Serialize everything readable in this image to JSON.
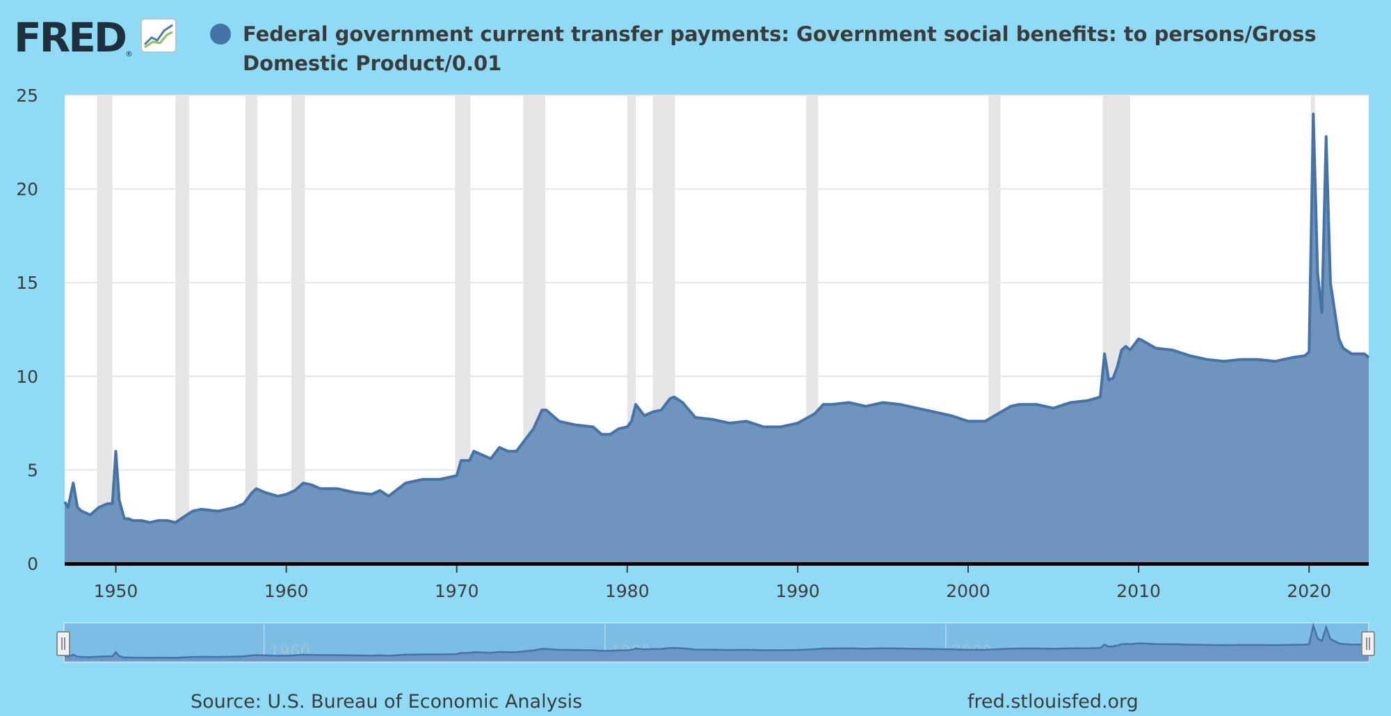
{
  "header": {
    "logo_text": "FRED",
    "logo_reg": "®",
    "title": "Federal government current transfer payments: Government social benefits: to persons/Gross Domestic Product/0.01",
    "series_color": "#4572a7"
  },
  "footer": {
    "source": "Source: U.S. Bureau of Economic Analysis",
    "url": "fred.stlouisfed.org"
  },
  "colors": {
    "background": "#8fdbf5",
    "plot_background": "#ffffff",
    "recession_band": "#e5e5e5",
    "series_line": "#4572a7",
    "series_fill": "#6f94bd",
    "navigator_bg": "#74b9e0"
  },
  "chart_data": {
    "type": "area",
    "title": "Federal government current transfer payments: Government social benefits: to persons/Gross Domestic Product/0.01",
    "xlabel": "",
    "ylabel": "",
    "xlim": [
      1947.0,
      2023.5
    ],
    "ylim": [
      0,
      25
    ],
    "yticks": [
      0,
      5,
      10,
      15,
      20,
      25
    ],
    "xticks": [
      1950,
      1960,
      1970,
      1980,
      1990,
      2000,
      2010,
      2020
    ],
    "navigator_ticks": [
      1960,
      1980,
      2000
    ],
    "grid": true,
    "legend": "top-left",
    "recessions": [
      [
        1948.9,
        1949.8
      ],
      [
        1953.5,
        1954.3
      ],
      [
        1957.6,
        1958.3
      ],
      [
        1960.3,
        1961.1
      ],
      [
        1969.9,
        1970.8
      ],
      [
        1973.9,
        1975.2
      ],
      [
        1980.0,
        1980.5
      ],
      [
        1981.5,
        1982.8
      ],
      [
        1990.5,
        1991.2
      ],
      [
        2001.2,
        2001.9
      ],
      [
        2007.9,
        2009.5
      ],
      [
        2020.1,
        2020.3
      ]
    ],
    "series": [
      {
        "x": [
          1947.0,
          1947.2,
          1947.5,
          1947.75,
          1948.0,
          1948.5,
          1949.0,
          1949.5,
          1949.8,
          1950.0,
          1950.2,
          1950.5,
          1950.75,
          1951.0,
          1951.5,
          1952.0,
          1952.5,
          1953.0,
          1953.5,
          1954.0,
          1954.5,
          1955.0,
          1956.0,
          1957.0,
          1957.5,
          1958.0,
          1958.25,
          1958.75,
          1959.5,
          1960.0,
          1960.5,
          1961.0,
          1961.5,
          1962.0,
          1963.0,
          1964.0,
          1965.0,
          1965.5,
          1966.0,
          1967.0,
          1968.0,
          1969.0,
          1970.0,
          1970.25,
          1970.75,
          1971.0,
          1972.0,
          1972.5,
          1973.0,
          1973.5,
          1974.0,
          1974.5,
          1975.0,
          1975.25,
          1976.0,
          1977.0,
          1978.0,
          1978.5,
          1979.0,
          1979.5,
          1980.0,
          1980.25,
          1980.5,
          1981.0,
          1981.5,
          1982.0,
          1982.5,
          1982.75,
          1983.25,
          1984.0,
          1985.0,
          1986.0,
          1987.0,
          1988.0,
          1989.0,
          1990.0,
          1991.0,
          1991.5,
          1992.0,
          1993.0,
          1994.0,
          1995.0,
          1996.0,
          1997.0,
          1998.0,
          1999.0,
          2000.0,
          2001.0,
          2001.75,
          2002.5,
          2003.0,
          2004.0,
          2005.0,
          2006.0,
          2007.0,
          2007.75,
          2008.0,
          2008.25,
          2008.5,
          2008.75,
          2009.0,
          2009.25,
          2009.5,
          2010.0,
          2010.25,
          2011.0,
          2012.0,
          2013.0,
          2014.0,
          2015.0,
          2016.0,
          2017.0,
          2018.0,
          2019.0,
          2019.75,
          2020.0,
          2020.25,
          2020.5,
          2020.75,
          2021.0,
          2021.25,
          2021.5,
          2021.75,
          2022.0,
          2022.5,
          2023.0,
          2023.25,
          2023.5
        ],
        "values": [
          3.3,
          3.0,
          4.3,
          3.0,
          2.8,
          2.6,
          3.0,
          3.2,
          3.2,
          6.0,
          3.4,
          2.4,
          2.4,
          2.3,
          2.3,
          2.2,
          2.3,
          2.3,
          2.2,
          2.5,
          2.8,
          2.9,
          2.8,
          3.0,
          3.2,
          3.8,
          4.0,
          3.8,
          3.6,
          3.7,
          3.9,
          4.3,
          4.2,
          4.0,
          4.0,
          3.8,
          3.7,
          3.9,
          3.6,
          4.3,
          4.5,
          4.5,
          4.7,
          5.5,
          5.5,
          6.0,
          5.6,
          6.2,
          6.0,
          6.0,
          6.6,
          7.2,
          8.2,
          8.2,
          7.6,
          7.4,
          7.3,
          6.9,
          6.9,
          7.2,
          7.3,
          7.6,
          8.5,
          7.9,
          8.1,
          8.2,
          8.8,
          8.9,
          8.6,
          7.8,
          7.7,
          7.5,
          7.6,
          7.3,
          7.3,
          7.5,
          8.0,
          8.5,
          8.5,
          8.6,
          8.4,
          8.6,
          8.5,
          8.3,
          8.1,
          7.9,
          7.6,
          7.6,
          8.0,
          8.4,
          8.5,
          8.5,
          8.3,
          8.6,
          8.7,
          8.9,
          11.2,
          9.8,
          9.9,
          10.5,
          11.4,
          11.6,
          11.4,
          12.0,
          11.9,
          11.5,
          11.4,
          11.1,
          10.9,
          10.8,
          10.9,
          10.9,
          10.8,
          11.0,
          11.1,
          11.3,
          24.0,
          15.5,
          13.4,
          22.8,
          15.0,
          13.5,
          12.0,
          11.5,
          11.2,
          11.2,
          11.2,
          11.0
        ]
      }
    ]
  }
}
